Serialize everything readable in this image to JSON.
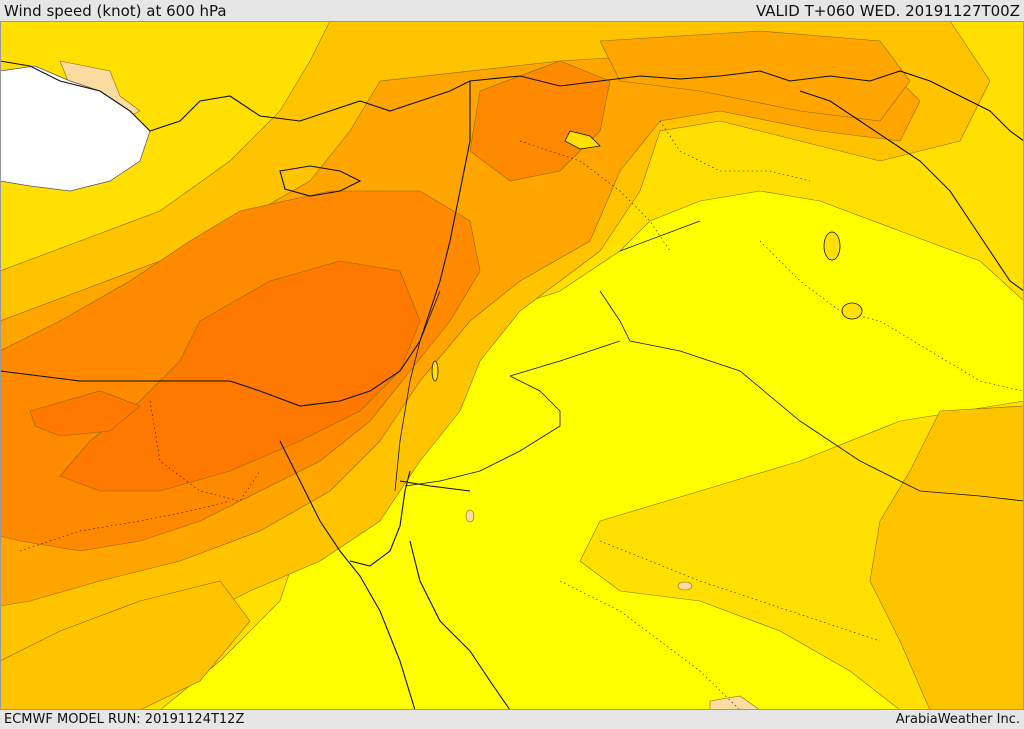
{
  "header": {
    "title": "Wind speed (knot) at 600 hPa",
    "valid": "VALID T+060 WED. 20191127T00Z"
  },
  "footer": {
    "model_run": "ECMWF MODEL RUN: 20191124T12Z",
    "credit": "ArabiaWeather Inc."
  },
  "map": {
    "field": "wind speed at 600 hPa",
    "palette": {
      "background": "#ffff00",
      "level1": "#ffe000",
      "level2": "#ffc400",
      "level3": "#ffa500",
      "level4": "#ff8a00",
      "level5": "#ff7800",
      "highlight": "#fcdca0",
      "no_data": "#ffffff"
    }
  }
}
